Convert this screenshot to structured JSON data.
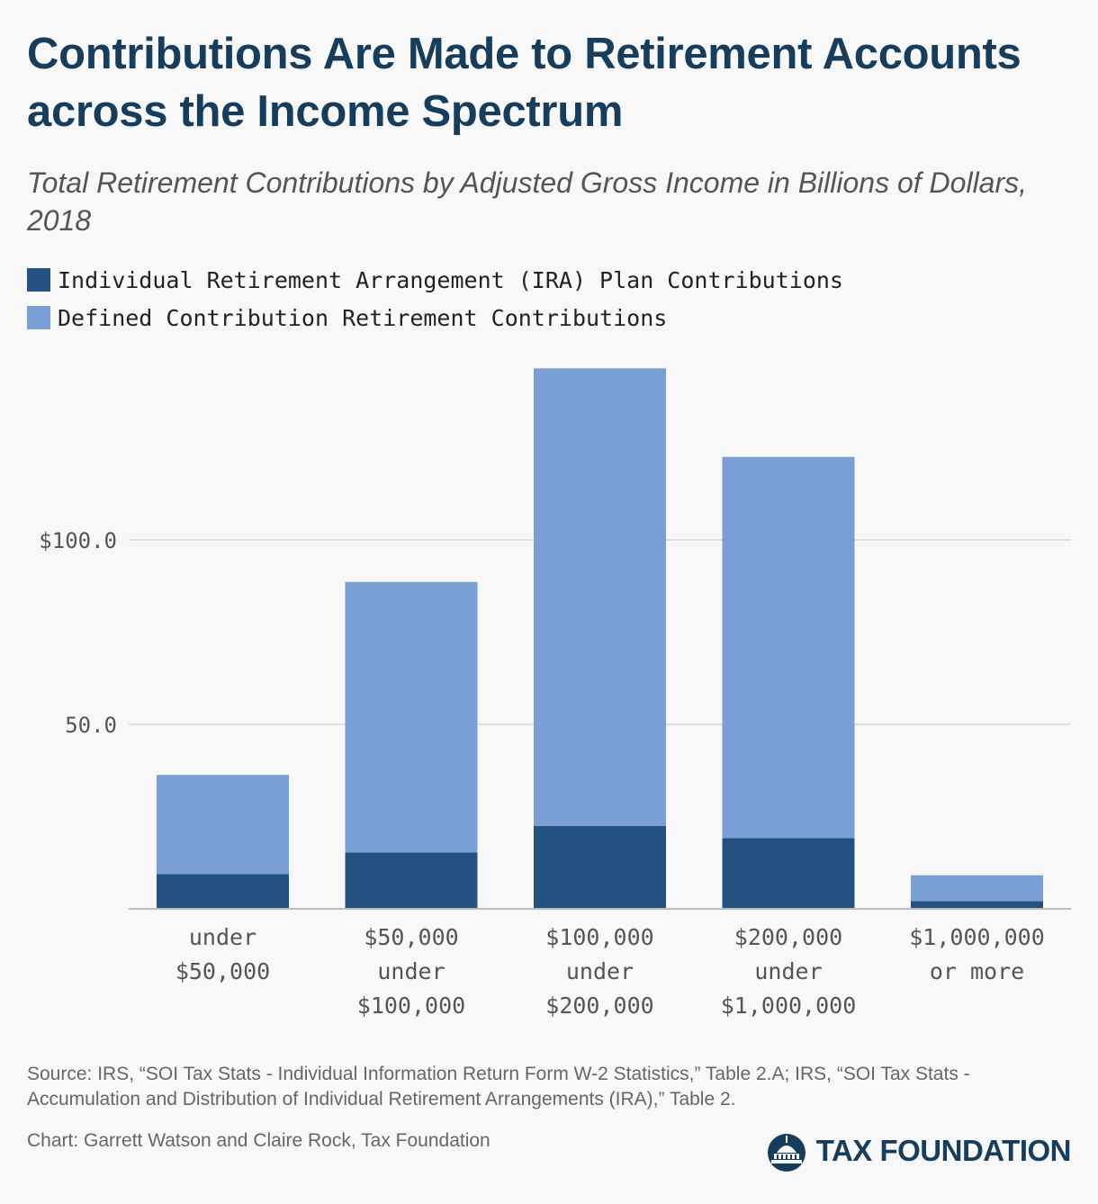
{
  "title": "Contributions Are Made to Retirement Accounts across the Income Spectrum",
  "subtitle": "Total Retirement Contributions by Adjusted Gross Income in Billions of Dollars, 2018",
  "legend": [
    {
      "label": "Individual Retirement Arrangement (IRA) Plan Contributions",
      "color": "#245383"
    },
    {
      "label": "Defined Contribution Retirement Contributions",
      "color": "#7a9fd4"
    }
  ],
  "source": "Source: IRS, “SOI Tax Stats - Individual Information Return Form W-2 Statistics,” Table 2.A; IRS, “SOI Tax Stats - Accumulation and Distribution of Individual Retirement Arrangements (IRA),” Table 2.",
  "credit": "Chart: Garrett Watson and Claire Rock, Tax Foundation",
  "logo_text": "TAX FOUNDATION",
  "chart_data": {
    "type": "bar",
    "stacked": true,
    "categories": [
      [
        "under",
        "$50,000"
      ],
      [
        "$50,000",
        "under",
        "$100,000"
      ],
      [
        "$100,000",
        "under",
        "$200,000"
      ],
      [
        "$200,000",
        "under",
        "$1,000,000"
      ],
      [
        "$1,000,000",
        "or more"
      ]
    ],
    "series": [
      {
        "name": "Individual Retirement Arrangement (IRA) Plan Contributions",
        "color": "#245383",
        "values": [
          9.4,
          15.3,
          22.5,
          19.2,
          2.1
        ]
      },
      {
        "name": "Defined Contribution Retirement Contributions",
        "color": "#7a9fd4",
        "values": [
          26.9,
          73.3,
          124.0,
          103.3,
          7.0
        ]
      }
    ],
    "y_ticks": [
      {
        "value": 50,
        "label": "50.0"
      },
      {
        "value": 100,
        "label": "$100.0"
      }
    ],
    "ylim": [
      0,
      150
    ],
    "grid": true
  }
}
